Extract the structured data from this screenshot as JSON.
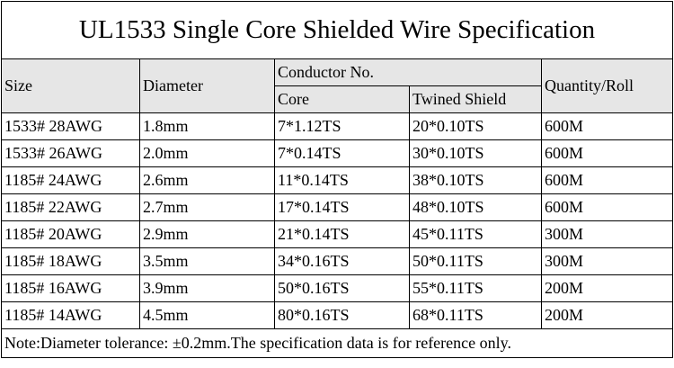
{
  "title": "UL1533 Single Core Shielded Wire Specification",
  "header": {
    "size": "Size",
    "diameter": "Diameter",
    "conductor": "Conductor No.",
    "core": "Core",
    "twined_shield": "Twined Shield",
    "quantity": "Quantity/Roll"
  },
  "rows": [
    [
      "1533# 28AWG",
      "1.8mm",
      "7*1.12TS",
      "20*0.10TS",
      "600M"
    ],
    [
      "1533# 26AWG",
      "2.0mm",
      "7*0.14TS",
      "30*0.10TS",
      "600M"
    ],
    [
      "1185# 24AWG",
      "2.6mm",
      "11*0.14TS",
      "38*0.10TS",
      "600M"
    ],
    [
      "1185# 22AWG",
      "2.7mm",
      "17*0.14TS",
      "48*0.10TS",
      "600M"
    ],
    [
      "1185# 20AWG",
      "2.9mm",
      "21*0.14TS",
      "45*0.11TS",
      "300M"
    ],
    [
      "1185# 18AWG",
      "3.5mm",
      "34*0.16TS",
      "50*0.11TS",
      "300M"
    ],
    [
      "1185# 16AWG",
      "3.9mm",
      "50*0.16TS",
      "55*0.11TS",
      "200M"
    ],
    [
      "1185# 14AWG",
      "4.5mm",
      "80*0.16TS",
      "68*0.11TS",
      "200M"
    ]
  ],
  "note": "Note:Diameter tolerance: ±0.2mm.The specification data is for reference only."
}
